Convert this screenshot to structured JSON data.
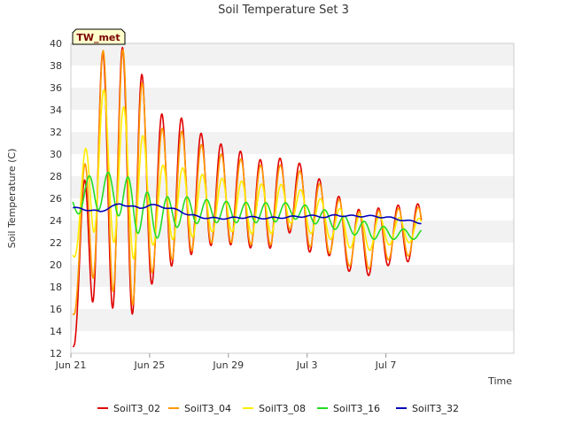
{
  "chart_data": {
    "type": "line",
    "title": "Soil Temperature Set 3",
    "xlabel": "Time",
    "ylabel": "Soil Temperature (C)",
    "badge": "TW_met",
    "ylim": [
      12,
      40
    ],
    "yticks": [
      12,
      14,
      16,
      18,
      20,
      22,
      24,
      26,
      28,
      30,
      32,
      34,
      36,
      38,
      40
    ],
    "xlim_days": [
      0,
      22.5
    ],
    "xticks": [
      {
        "label": "Jun 21",
        "day": 0
      },
      {
        "label": "Jun 25",
        "day": 4
      },
      {
        "label": "Jun 29",
        "day": 8
      },
      {
        "label": "Jul 3",
        "day": 12
      },
      {
        "label": "Jul 7",
        "day": 16
      }
    ],
    "grid": "alternating horizontal bands",
    "legend_position": "bottom",
    "days": [
      0.2,
      1.2,
      2.2,
      3.2,
      4.2,
      5.2,
      6.2,
      7.2,
      8.2,
      9.2,
      10.2,
      11.2,
      12.2,
      13.2,
      14.2,
      15.2,
      16.2,
      17.2
    ],
    "series": [
      {
        "name": "SoilT3_02",
        "color": "#e00000",
        "phase": 0.62,
        "max": [
          18,
          39,
          39.5,
          39.8,
          33.5,
          33.8,
          32.5,
          31,
          30.8,
          29.5,
          29.5,
          29.8,
          28.3,
          27,
          25,
          25,
          25.3,
          25.5
        ],
        "min": [
          12.6,
          17,
          16,
          15.5,
          18.5,
          20,
          21,
          21.8,
          21.8,
          21.5,
          21.5,
          23,
          21,
          20.8,
          19.3,
          19,
          20,
          20.3
        ]
      },
      {
        "name": "SoilT3_04",
        "color": "#ff9900",
        "phase": 0.64,
        "max": [
          19.6,
          39.4,
          39.3,
          39.6,
          32.2,
          32.5,
          31.5,
          30,
          30,
          29,
          29,
          29,
          27.8,
          26.7,
          24.8,
          24.8,
          25,
          25.2
        ],
        "min": [
          15.5,
          19,
          17.5,
          16.3,
          19.5,
          20.5,
          21.3,
          22,
          22,
          21.8,
          21.8,
          23.3,
          21.5,
          21,
          19.8,
          19.6,
          20.5,
          20.8
        ]
      },
      {
        "name": "SoilT3_08",
        "color": "#ffee00",
        "phase": 0.68,
        "max": [
          23.5,
          37,
          34.5,
          34,
          29,
          29,
          28.5,
          27.8,
          27.8,
          27.3,
          27.3,
          27.2,
          26.3,
          25.6,
          24.5,
          24.5,
          24.3,
          24.2
        ],
        "min": [
          20.7,
          23,
          22,
          20.5,
          21.8,
          22.3,
          22.5,
          23,
          23,
          22.8,
          22.8,
          23.8,
          22.8,
          22.3,
          21.5,
          21.3,
          21.8,
          22
        ]
      },
      {
        "name": "SoilT3_16",
        "color": "#22dd22",
        "phase": 0.9,
        "max": [
          26.3,
          28.7,
          28.2,
          27.8,
          26,
          26.2,
          26.1,
          25.8,
          25.7,
          25.6,
          25.6,
          25.6,
          25.3,
          24.8,
          24.2,
          23.8,
          23.3,
          23.2
        ],
        "min": [
          24.5,
          25,
          24.8,
          23,
          22.2,
          23.3,
          23.7,
          23.8,
          23.8,
          23.8,
          23.8,
          24.2,
          23.8,
          23.3,
          22.8,
          22.3,
          22.3,
          22.3
        ]
      },
      {
        "name": "SoilT3_32",
        "color": "#0000bb",
        "phase": 0,
        "trend_days": [
          0.5,
          1.0,
          1.5,
          2.0,
          2.5,
          3.0,
          3.5,
          4.0,
          4.5,
          5.0,
          5.5,
          6.0,
          7.0,
          8.0,
          9.0,
          10.0,
          11.0,
          12.0,
          12.5,
          13.0,
          13.5,
          14.0,
          15.0,
          16.0,
          17.0,
          17.7
        ],
        "trend": [
          25.1,
          24.9,
          24.8,
          25.2,
          25.5,
          25.3,
          25.1,
          25.4,
          25.3,
          25.1,
          24.9,
          24.5,
          24.2,
          24.2,
          24.3,
          24.2,
          24.3,
          24.4,
          24.4,
          24.3,
          24.5,
          24.4,
          24.4,
          24.3,
          24.0,
          23.8
        ]
      }
    ]
  }
}
